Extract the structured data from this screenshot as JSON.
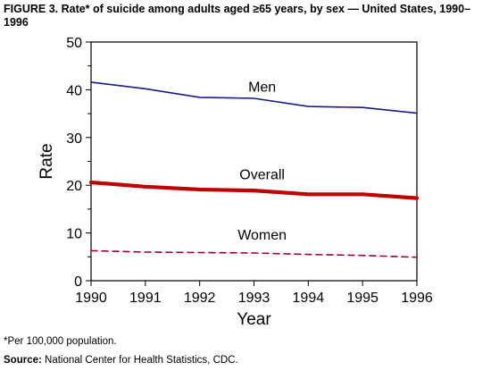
{
  "title": "FIGURE 3. Rate* of suicide among adults aged ≥65 years, by sex — United States, 1990–1996",
  "footnote": "*Per 100,000 population.",
  "source_label": "Source:",
  "source_text": " National Center for Health Statistics, CDC.",
  "chart_data": {
    "type": "line",
    "title": "FIGURE 3. Rate* of suicide among adults aged ≥65 years, by sex — United States, 1990–1996",
    "xlabel": "Year",
    "ylabel": "Rate",
    "x": [
      1990,
      1991,
      1992,
      1993,
      1994,
      1995,
      1996
    ],
    "xticks": [
      "1990",
      "1991",
      "1992",
      "1993",
      "1994",
      "1995",
      "1996"
    ],
    "ylim": [
      0,
      50
    ],
    "yticks": [
      "0",
      "10",
      "20",
      "30",
      "40",
      "50"
    ],
    "grid": false,
    "legend": "inline labels",
    "series": [
      {
        "name": "Men",
        "values": [
          41.6,
          40.2,
          38.4,
          38.2,
          36.5,
          36.3,
          35.1
        ],
        "color": "#1a1a8c",
        "style": "solid"
      },
      {
        "name": "Overall",
        "values": [
          20.6,
          19.7,
          19.1,
          18.9,
          18.1,
          18.1,
          17.3
        ],
        "color": "#c00000",
        "style": "thick"
      },
      {
        "name": "Women",
        "values": [
          6.3,
          6.0,
          5.9,
          5.8,
          5.5,
          5.3,
          4.9
        ],
        "color": "#a00040",
        "style": "dashed"
      }
    ]
  }
}
